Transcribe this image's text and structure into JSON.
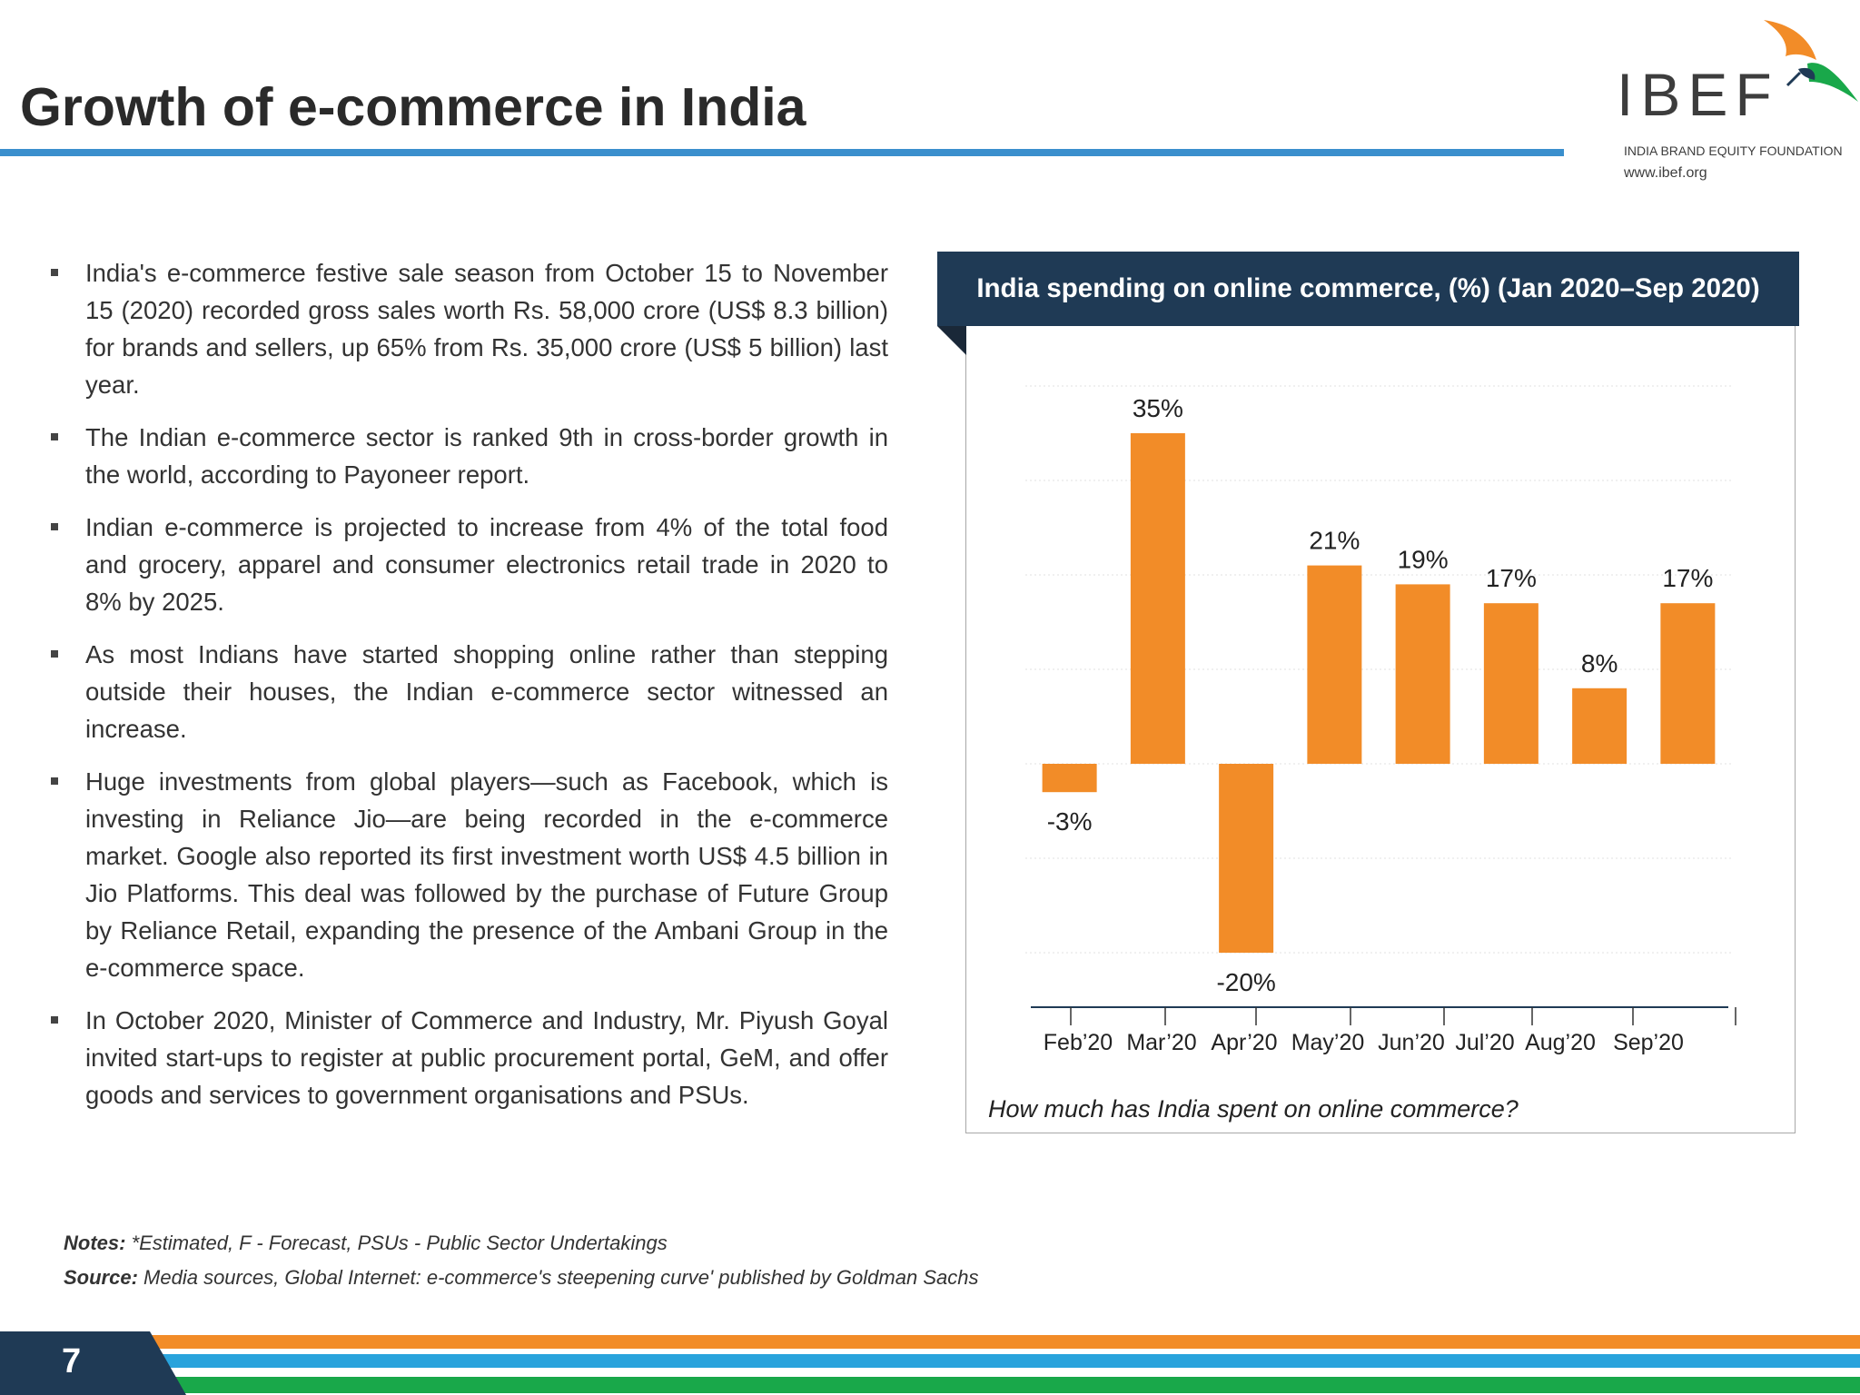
{
  "header": {
    "title": "Growth of e-commerce in India",
    "logo": {
      "wordmark": "IBEF",
      "tagline": "INDIA BRAND EQUITY FOUNDATION",
      "url": "www.ibef.org"
    }
  },
  "bullets": [
    "India's e-commerce festive sale season from October 15 to November 15 (2020) recorded gross sales worth Rs. 58,000 crore (US$ 8.3 billion) for brands and sellers, up 65% from Rs. 35,000 crore (US$ 5 billion) last year.",
    "The Indian e-commerce sector is ranked 9th in cross-border growth in the world, according to Payoneer report.",
    "Indian e-commerce is projected to increase from 4% of the total food and grocery, apparel and consumer electronics retail trade in 2020 to 8% by 2025.",
    "As most Indians have started shopping online rather than stepping outside their houses, the Indian e-commerce sector witnessed an increase.",
    "Huge investments from global players—such as Facebook, which is investing in Reliance Jio—are being recorded in the e-commerce market. Google also reported its first investment worth US$ 4.5 billion in Jio Platforms. This deal was followed by the purchase of Future Group by Reliance Retail, expanding the presence of the Ambani Group in the e-commerce space.",
    "In October 2020, Minister of Commerce and Industry, Mr. Piyush Goyal invited start-ups to register at public procurement portal, GeM, and offer goods and services to government organisations and PSUs."
  ],
  "chart_data": {
    "type": "bar",
    "title": "India spending on online commerce, (%) (Jan 2020–Sep 2020)",
    "caption": "How much has India spent on online commerce?",
    "categories": [
      "Feb’20",
      "Mar’20",
      "Apr’20",
      "May’20",
      "Jun’20",
      "Jul’20",
      "Aug’20",
      "Sep’20"
    ],
    "values": [
      -3,
      35,
      -20,
      21,
      19,
      17,
      8,
      17
    ],
    "data_labels": [
      "-3%",
      "35%",
      "-20%",
      "21%",
      "19%",
      "17%",
      "8%",
      "17%"
    ],
    "ylim": [
      -30,
      40
    ],
    "grid": true,
    "bar_color": "#f28c28"
  },
  "notes": {
    "notes_label": "Notes:",
    "notes_text": " *Estimated, F - Forecast, PSUs - Public Sector Undertakings",
    "source_label": "Source:",
    "source_text": " Media sources, Global Internet: e-commerce's steepening curve' published by Goldman Sachs"
  },
  "footer": {
    "page_number": "7"
  },
  "colors": {
    "title_rule": "#3a8fcd",
    "header_navy": "#1f3a55",
    "stripe_orange": "#f28c28",
    "stripe_blue": "#29a3dc",
    "stripe_green": "#19a84a"
  }
}
